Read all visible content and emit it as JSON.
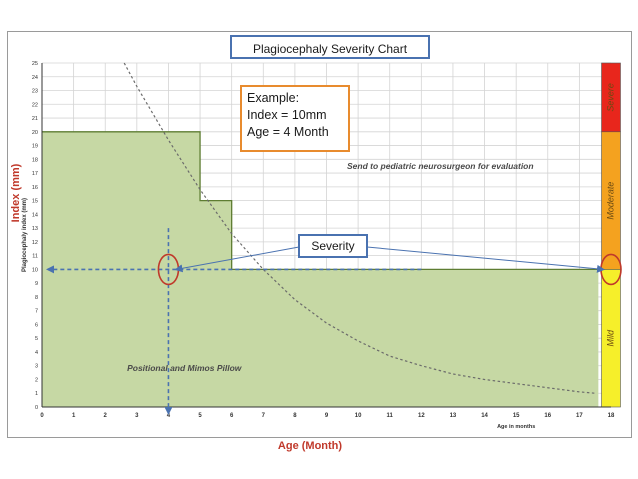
{
  "title": "Plagiocephaly Severity Chart",
  "example": {
    "heading": "Example:",
    "line1": "Index = 10mm",
    "line2": "Age = 4 Month"
  },
  "severity_label": "Severity",
  "outer_ylabel": "Index (mm)",
  "outer_xlabel": "Age (Month)",
  "colors": {
    "green_fill": "#c6d8a4",
    "green_edge": "#5e7d32",
    "blue_dash": "#4a72b0",
    "red_circle": "#c0392b",
    "severe": "#e8261c",
    "moderate": "#f4a21f",
    "mild": "#f6ef2a"
  },
  "chart_data": {
    "type": "area",
    "title": "Plagiocephaly Severity Chart",
    "xlabel": "Age in months",
    "ylabel": "Plagiocephaly index (mm)",
    "xlim": [
      0,
      18
    ],
    "ylim": [
      0,
      25
    ],
    "x_ticks": [
      0,
      1,
      2,
      3,
      4,
      5,
      6,
      7,
      8,
      9,
      10,
      11,
      12,
      13,
      14,
      15,
      16,
      17,
      18
    ],
    "y_ticks": [
      0,
      1,
      2,
      3,
      4,
      5,
      6,
      7,
      8,
      9,
      10,
      11,
      12,
      13,
      14,
      15,
      16,
      17,
      18,
      19,
      20,
      21,
      22,
      23,
      24,
      25
    ],
    "grid": true,
    "threshold_steps": [
      {
        "x": 0,
        "y": 20
      },
      {
        "x": 5,
        "y": 20
      },
      {
        "x": 5,
        "y": 15
      },
      {
        "x": 6,
        "y": 15
      },
      {
        "x": 6,
        "y": 10
      },
      {
        "x": 17.6,
        "y": 10
      }
    ],
    "curve": [
      {
        "x": 2.6,
        "y": 25
      },
      {
        "x": 3,
        "y": 23.3
      },
      {
        "x": 4,
        "y": 19.4
      },
      {
        "x": 5,
        "y": 15.8
      },
      {
        "x": 6,
        "y": 12.6
      },
      {
        "x": 7,
        "y": 10
      },
      {
        "x": 8,
        "y": 7.8
      },
      {
        "x": 9,
        "y": 6.1
      },
      {
        "x": 10,
        "y": 4.8
      },
      {
        "x": 11,
        "y": 3.7
      },
      {
        "x": 12,
        "y": 3
      },
      {
        "x": 13,
        "y": 2.4
      },
      {
        "x": 14,
        "y": 2
      },
      {
        "x": 15,
        "y": 1.7
      },
      {
        "x": 16,
        "y": 1.4
      },
      {
        "x": 17,
        "y": 1.1
      },
      {
        "x": 17.5,
        "y": 1
      }
    ],
    "annotations": [
      {
        "text": "Send to pediatric neurosurgeon for evaluation",
        "x": 12.6,
        "y": 17.3
      },
      {
        "text": "Positional and Mimos Pillow",
        "x": 4.5,
        "y": 2.6
      }
    ],
    "example_point": {
      "x": 4,
      "y": 10
    },
    "severity_bands": [
      {
        "name": "Severe",
        "from": 20,
        "to": 25
      },
      {
        "name": "Moderate",
        "from": 10,
        "to": 20
      },
      {
        "name": "Mild",
        "from": 0,
        "to": 10
      }
    ]
  }
}
